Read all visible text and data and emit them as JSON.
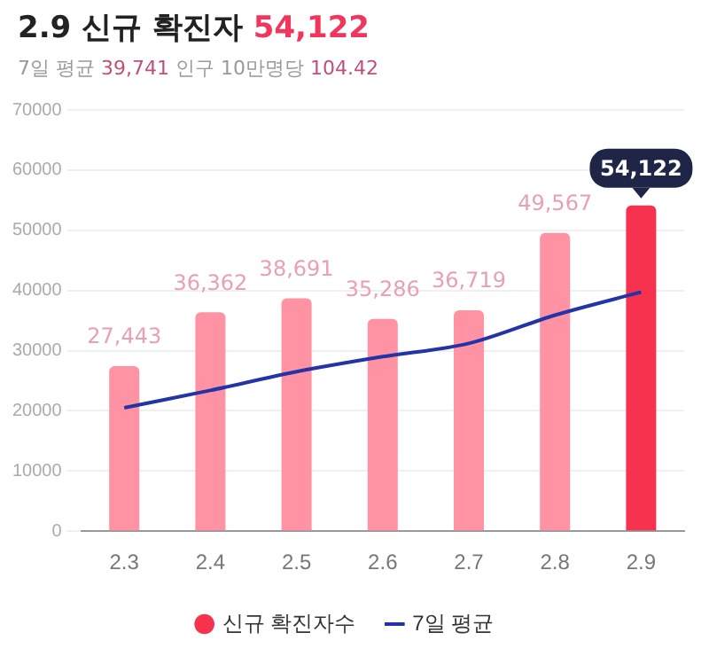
{
  "chart_data": {
    "type": "bar",
    "title": "2.9 신규 확진자 54,122",
    "subtitle": "7일 평균 39,741  인구 10만명당 104.42",
    "categories": [
      "2.3",
      "2.4",
      "2.5",
      "2.6",
      "2.7",
      "2.8",
      "2.9"
    ],
    "series": [
      {
        "name": "신규 확진자수",
        "color": "#f7324f",
        "value_labels": [
          "27,443",
          "36,362",
          "38,691",
          "35,286",
          "36,719",
          "49,567",
          "54,122"
        ],
        "colors": [
          "#ff93a4",
          "#ff93a4",
          "#ff93a4",
          "#ff93a4",
          "#ff93a4",
          "#ff93a4",
          "#f7324f"
        ],
        "values": [
          27443,
          36362,
          38691,
          35286,
          36719,
          49567,
          54122
        ]
      },
      {
        "name": "7일 평균",
        "type": "line",
        "color": "#2433a6",
        "values": [
          20500,
          23400,
          26500,
          29000,
          31200,
          35900,
          39741
        ]
      }
    ],
    "ylim": [
      0,
      70000
    ],
    "yticks": [
      0,
      10000,
      20000,
      30000,
      40000,
      50000,
      60000,
      70000
    ],
    "grid": "y",
    "legend": "bottom",
    "marker": "none"
  }
}
